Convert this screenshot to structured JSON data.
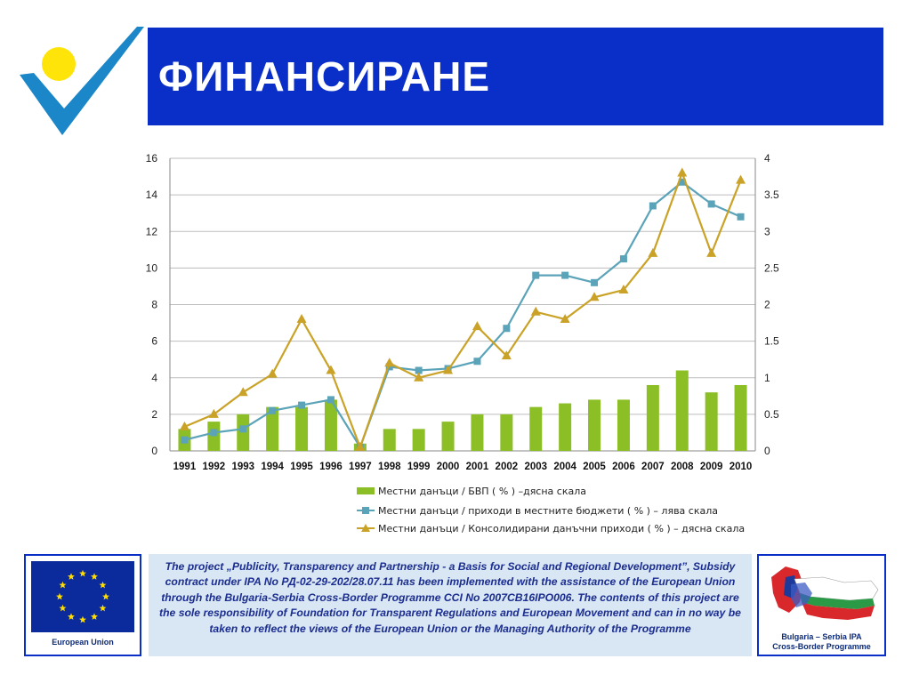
{
  "header": {
    "title": "ФИНАНСИРАНЕ"
  },
  "colors": {
    "title_bar": "#0a2fc8",
    "bars": "#8cbf26",
    "teal_line": "#5ba3b8",
    "gold_line": "#c9a227",
    "logo_dot": "#ffe40a",
    "logo_check": "#1b86c8"
  },
  "chart_data": {
    "type": "bar",
    "categories": [
      "1991",
      "1992",
      "1993",
      "1994",
      "1995",
      "1996",
      "1997",
      "1998",
      "1999",
      "2000",
      "2001",
      "2002",
      "2003",
      "2004",
      "2005",
      "2006",
      "2007",
      "2008",
      "2009",
      "2010"
    ],
    "left_axis": {
      "ylim": [
        0,
        16
      ],
      "ticks": [
        "0",
        "2",
        "4",
        "6",
        "8",
        "10",
        "12",
        "14",
        "16"
      ]
    },
    "right_axis": {
      "ylim": [
        0,
        4
      ],
      "ticks": [
        "0",
        "0.5",
        "1",
        "1.5",
        "2",
        "2.5",
        "3",
        "3.5",
        "4"
      ]
    },
    "grid": true,
    "legend_position": "bottom",
    "series": [
      {
        "name": "Местни данъци / БВП ( % ) –дясна скала",
        "type": "bar",
        "axis": "right",
        "values": [
          0.3,
          0.4,
          0.5,
          0.6,
          0.6,
          0.7,
          0.1,
          0.3,
          0.3,
          0.4,
          0.5,
          0.5,
          0.6,
          0.65,
          0.7,
          0.7,
          0.9,
          1.1,
          0.8,
          0.9
        ]
      },
      {
        "name": "Местни данъци / приходи в местните бюджети ( % ) – лява скала",
        "type": "line",
        "axis": "left",
        "marker": "square",
        "values": [
          0.6,
          1.0,
          1.2,
          2.2,
          2.5,
          2.8,
          0.2,
          4.6,
          4.4,
          4.5,
          4.9,
          6.7,
          9.6,
          9.6,
          9.2,
          10.5,
          13.4,
          14.7,
          13.5,
          12.8
        ]
      },
      {
        "name": "Местни данъци / Консолидирани данъчни приходи ( % ) – дясна скала",
        "type": "line",
        "axis": "right",
        "marker": "triangle",
        "values": [
          0.33,
          0.5,
          0.8,
          1.05,
          1.8,
          1.1,
          0.05,
          1.2,
          1.0,
          1.1,
          1.7,
          1.3,
          1.9,
          1.8,
          2.1,
          2.2,
          2.7,
          3.8,
          2.7,
          3.7
        ]
      }
    ]
  },
  "footer": {
    "eu_label": "European Union",
    "project_text": "The project „Publicity, Transparency and Partnership - a Basis for Social and Regional Development”, Subsidy contract under IPA No РД-02-29-202/28.07.11 has been implemented with the assistance of the European Union through the Bulgaria-Serbia Cross-Border Programme CCI No 2007CB16IPO006. The contents of this project are the sole responsibility of Foundation for Transparent Regulations and European Movement and can in no way be taken to reflect the views of the European Union or the Managing Authority of the Programme",
    "programme_label_line1": "Bulgaria – Serbia IPA",
    "programme_label_line2": "Cross-Border  Programme"
  }
}
